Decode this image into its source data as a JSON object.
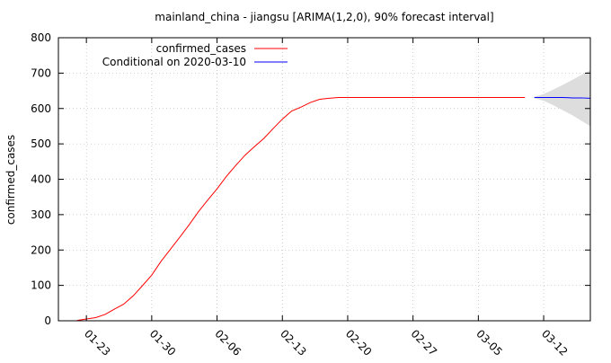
{
  "chart_data": {
    "type": "line",
    "title": "mainland_china - jiangsu [ARIMA(1,2,0), 90% forecast interval]",
    "xlabel": "",
    "ylabel": "confirmed_cases",
    "ylim": [
      0,
      800
    ],
    "xlim": [
      "2020-01-20",
      "2020-03-17"
    ],
    "yticks": [
      0,
      100,
      200,
      300,
      400,
      500,
      600,
      700,
      800
    ],
    "xticks": [
      "01-23",
      "01-30",
      "02-06",
      "02-13",
      "02-20",
      "02-27",
      "03-05",
      "03-12"
    ],
    "xtick_dates": [
      "2020-01-23",
      "2020-01-30",
      "2020-02-06",
      "2020-02-13",
      "2020-02-20",
      "2020-02-27",
      "2020-03-05",
      "2020-03-12"
    ],
    "grid": true,
    "legend_position": "top-left",
    "colors": {
      "observed": "#ff0000",
      "forecast": "#0000ff",
      "interval": "#dddddd"
    },
    "series": [
      {
        "name": "confirmed_cases",
        "x": [
          "2020-01-22",
          "2020-01-23",
          "2020-01-24",
          "2020-01-25",
          "2020-01-26",
          "2020-01-27",
          "2020-01-28",
          "2020-01-29",
          "2020-01-30",
          "2020-01-31",
          "2020-02-01",
          "2020-02-02",
          "2020-02-03",
          "2020-02-04",
          "2020-02-05",
          "2020-02-06",
          "2020-02-07",
          "2020-02-08",
          "2020-02-09",
          "2020-02-10",
          "2020-02-11",
          "2020-02-12",
          "2020-02-13",
          "2020-02-14",
          "2020-02-15",
          "2020-02-16",
          "2020-02-17",
          "2020-02-18",
          "2020-02-19",
          "2020-02-20",
          "2020-02-21",
          "2020-02-22",
          "2020-02-23",
          "2020-02-24",
          "2020-02-25",
          "2020-02-26",
          "2020-02-27",
          "2020-02-28",
          "2020-02-29",
          "2020-03-01",
          "2020-03-02",
          "2020-03-03",
          "2020-03-04",
          "2020-03-05",
          "2020-03-06",
          "2020-03-07",
          "2020-03-08",
          "2020-03-09",
          "2020-03-10"
        ],
        "values": [
          1,
          5,
          9,
          18,
          33,
          47,
          70,
          99,
          129,
          168,
          202,
          236,
          271,
          308,
          341,
          373,
          408,
          439,
          468,
          492,
          515,
          543,
          570,
          593,
          604,
          617,
          626,
          629,
          631,
          631,
          631,
          631,
          631,
          631,
          631,
          631,
          631,
          631,
          631,
          631,
          631,
          631,
          631,
          631,
          631,
          631,
          631,
          631,
          631
        ]
      },
      {
        "name": "Conditional on 2020-03-10",
        "x": [
          "2020-03-11",
          "2020-03-12",
          "2020-03-13",
          "2020-03-14",
          "2020-03-15",
          "2020-03-16",
          "2020-03-17"
        ],
        "values": [
          631,
          631,
          631,
          631,
          630,
          630,
          629
        ]
      }
    ],
    "interval": {
      "x": [
        "2020-03-11",
        "2020-03-12",
        "2020-03-13",
        "2020-03-14",
        "2020-03-15",
        "2020-03-16",
        "2020-03-17"
      ],
      "lower": [
        629,
        622,
        610,
        596,
        582,
        566,
        550
      ],
      "upper": [
        633,
        641,
        653,
        666,
        680,
        694,
        708
      ]
    }
  }
}
